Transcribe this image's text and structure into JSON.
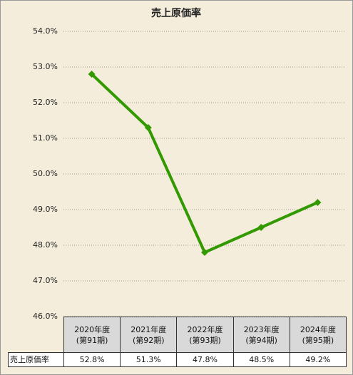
{
  "chart_data": {
    "type": "line",
    "title": "売上原価率",
    "categories": [
      "2020年度\n(第91期)",
      "2021年度\n(第92期)",
      "2022年度\n(第93期)",
      "2023年度\n(第94期)",
      "2024年度\n(第95期)"
    ],
    "series": [
      {
        "name": "売上原価率",
        "color": "#339900",
        "values": [
          52.8,
          51.3,
          47.8,
          48.5,
          49.2
        ],
        "value_labels": [
          "52.8%",
          "51.3%",
          "47.8%",
          "48.5%",
          "49.2%"
        ]
      }
    ],
    "ylim": [
      46,
      54
    ],
    "yticks": [
      {
        "value": 46,
        "label": "46.0%"
      },
      {
        "value": 47,
        "label": "47.0%"
      },
      {
        "value": 48,
        "label": "48.0%"
      },
      {
        "value": 49,
        "label": "49.0%"
      },
      {
        "value": 50,
        "label": "50.0%"
      },
      {
        "value": 51,
        "label": "51.0%"
      },
      {
        "value": 52,
        "label": "52.0%"
      },
      {
        "value": 53,
        "label": "53.0%"
      },
      {
        "value": 54,
        "label": "54.0%"
      }
    ],
    "grid": true
  }
}
